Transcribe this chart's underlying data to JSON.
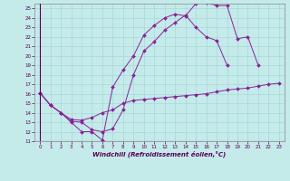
{
  "xlabel": "Windchill (Refroidissement éolien,°C)",
  "background_color": "#c5eaea",
  "grid_color": "#a8d8d8",
  "line_color": "#882299",
  "xlim": [
    -0.5,
    23.5
  ],
  "ylim": [
    11,
    25.5
  ],
  "xticks": [
    0,
    1,
    2,
    3,
    4,
    5,
    6,
    7,
    8,
    9,
    10,
    11,
    12,
    13,
    14,
    15,
    16,
    17,
    18,
    19,
    20,
    21,
    22,
    23
  ],
  "yticks": [
    11,
    12,
    13,
    14,
    15,
    16,
    17,
    18,
    19,
    20,
    21,
    22,
    23,
    24,
    25
  ],
  "line1_x": [
    0,
    1,
    2,
    3,
    4,
    5,
    6,
    7,
    8,
    9,
    10,
    11,
    12,
    13,
    14,
    15,
    16,
    17,
    18,
    19,
    20,
    21
  ],
  "line1_y": [
    16.1,
    14.8,
    14.0,
    13.0,
    12.0,
    12.0,
    11.1,
    16.7,
    18.5,
    20.0,
    22.2,
    23.2,
    24.0,
    24.4,
    24.2,
    25.5,
    25.6,
    25.3,
    25.3,
    21.8,
    22.0,
    19.0
  ],
  "line2_x": [
    0,
    1,
    2,
    3,
    4,
    5,
    6,
    7,
    8,
    9,
    10,
    11,
    12,
    13,
    14,
    15,
    16,
    17,
    18,
    19,
    20,
    21,
    22,
    23
  ],
  "line2_y": [
    16.1,
    14.8,
    14.0,
    13.1,
    13.0,
    12.2,
    12.0,
    12.3,
    14.3,
    18.0,
    20.5,
    21.5,
    22.7,
    23.5,
    24.3,
    23.0,
    22.0,
    21.6,
    19.0,
    null,
    null,
    null,
    null,
    null
  ],
  "line3_x": [
    0,
    1,
    2,
    3,
    4,
    5,
    6,
    7,
    8,
    9,
    10,
    11,
    12,
    13,
    14,
    15,
    16,
    17,
    18,
    19,
    20,
    21,
    22,
    23
  ],
  "line3_y": [
    16.1,
    14.8,
    14.0,
    13.3,
    13.2,
    13.5,
    14.0,
    14.3,
    15.0,
    15.3,
    15.4,
    15.5,
    15.6,
    15.7,
    15.8,
    15.9,
    16.0,
    16.2,
    16.4,
    16.5,
    16.6,
    16.8,
    17.0,
    17.1
  ]
}
